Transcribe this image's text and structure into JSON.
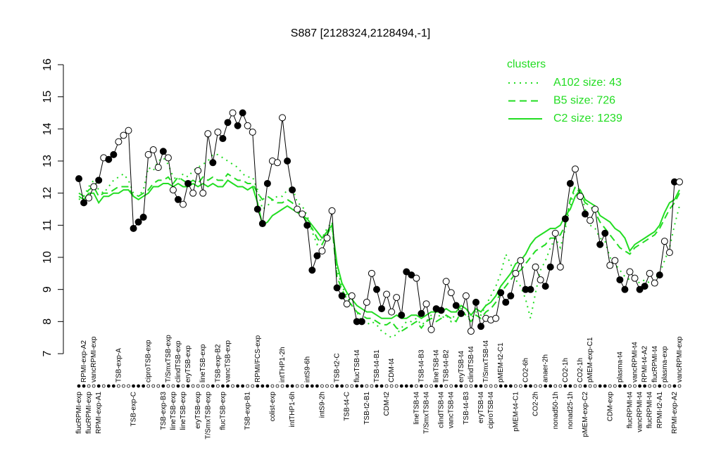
{
  "chart_data": {
    "type": "dot-line",
    "title": "S887 [2128324,2128494,-1]",
    "ylim": [
      7,
      16
    ],
    "yticks": [
      7,
      8,
      9,
      10,
      11,
      12,
      13,
      14,
      15,
      16
    ],
    "categories": [
      "flucRPMI-exp",
      "RPMI-exp-A2",
      "flucRPMI-exp",
      "vancRPMI-exp",
      "RPMI-exp-A1",
      null,
      null,
      null,
      "TSB-exp-A",
      null,
      null,
      "TSB-exp-C",
      null,
      null,
      "ciproTSB-exp",
      null,
      null,
      "TSB-exp-B3",
      "T/SmxTSB-exp",
      "lineTSB-exp",
      "clindTSB-exp",
      "lineTSB-exp",
      "eryTSB-exp",
      null,
      "eryTSB-exp",
      "lineTSB-exp",
      "T/SmxTSB-exp",
      null,
      "TSB-exp-B2",
      "flucTSB-exp",
      "vancTSB-exp",
      null,
      null,
      null,
      "TSB-exp-B1",
      null,
      "RPMI/FCS-exp",
      null,
      null,
      "colist-exp",
      null,
      "intTHP1-2h",
      null,
      "intTHP1-6h",
      null,
      null,
      "intS9-6h",
      null,
      null,
      "intS9-2h",
      null,
      null,
      "TSB-t2-C",
      null,
      "TSB-t4-C",
      null,
      "flucTSB-t4",
      null,
      "TSB-t2-B1",
      null,
      "TSB-t4-B1",
      null,
      "CDM-t2",
      "CDM-t4",
      null,
      null,
      null,
      null,
      "lineTSB-t4",
      "TSB-t4-B3",
      "T/SmxTSB-t4",
      null,
      "lineTSB-t4",
      "clindTSB-t4",
      "TSB-t4-B2",
      "vancTSB-t4",
      null,
      "eryTSB-t4",
      "TSB-t4-B3",
      "clindTSB-t4",
      null,
      "eryTSB-t4",
      "T/SmxTSB-t4",
      "ciproTSB-t4",
      null,
      "pMEM-t2-C1",
      null,
      null,
      "pMEM-t4-C1",
      null,
      "CO2-6h",
      null,
      "CO2-2h",
      null,
      "anaer-2h",
      null,
      "nonad50-1h",
      null,
      "CO2-1h",
      "nonad25-1h",
      null,
      "CO2-1h",
      "pMEM-exp-C2",
      "pMEM-exp-C1",
      null,
      null,
      null,
      "CDM-exp",
      null,
      "plasma-t4",
      null,
      "flucRPMI-t4",
      "vancRPMI-t4",
      "vancRPMI-t4",
      "RPMI-t4-A2",
      "flucRPMI-t4",
      "flucRPMI-t4",
      "RPMI-t2-A1",
      "plasma-exp",
      null,
      "RPMI-exp-A2",
      "vancRPMI-exp"
    ],
    "values": [
      12.45,
      11.7,
      11.85,
      12.2,
      12.4,
      13.1,
      13.05,
      13.2,
      13.6,
      13.8,
      13.95,
      10.9,
      11.1,
      11.25,
      13.2,
      13.35,
      12.8,
      13.3,
      13.1,
      12.1,
      11.8,
      11.65,
      12.3,
      12.0,
      12.7,
      12.0,
      13.85,
      12.95,
      13.9,
      13.7,
      14.2,
      14.5,
      14.1,
      14.5,
      14.1,
      13.9,
      11.5,
      11.05,
      12.3,
      13.0,
      12.95,
      14.35,
      13.0,
      12.1,
      11.5,
      11.35,
      11.0,
      9.6,
      10.05,
      10.2,
      10.6,
      11.45,
      9.05,
      8.8,
      8.55,
      8.8,
      8.0,
      8.0,
      8.6,
      9.5,
      9.0,
      8.4,
      8.85,
      8.3,
      8.75,
      8.2,
      9.55,
      9.45,
      9.35,
      8.25,
      8.55,
      7.75,
      8.4,
      8.35,
      9.25,
      8.9,
      8.5,
      8.25,
      8.8,
      7.7,
      8.6,
      7.85,
      8.1,
      8.05,
      8.1,
      8.9,
      8.6,
      8.8,
      9.5,
      9.9,
      9.0,
      9.0,
      9.7,
      9.3,
      9.1,
      9.7,
      10.75,
      9.7,
      11.2,
      12.3,
      12.75,
      11.9,
      11.35,
      11.15,
      11.5,
      10.4,
      10.75,
      9.75,
      9.9,
      9.3,
      9.0,
      9.55,
      9.35,
      9.0,
      9.1,
      9.5,
      9.2,
      9.45,
      10.5,
      10.15,
      12.35,
      12.35
    ],
    "point_filled": [
      true,
      true,
      false,
      false,
      true,
      false,
      true,
      true,
      false,
      false,
      false,
      true,
      true,
      true,
      false,
      false,
      false,
      true,
      false,
      false,
      true,
      false,
      true,
      false,
      false,
      false,
      false,
      true,
      false,
      true,
      true,
      false,
      true,
      true,
      false,
      false,
      true,
      true,
      true,
      false,
      false,
      false,
      true,
      true,
      false,
      false,
      true,
      true,
      true,
      false,
      false,
      false,
      true,
      true,
      false,
      false,
      true,
      true,
      false,
      false,
      true,
      true,
      false,
      false,
      false,
      true,
      true,
      true,
      false,
      true,
      false,
      false,
      true,
      true,
      false,
      false,
      true,
      true,
      false,
      false,
      true,
      true,
      false,
      false,
      false,
      true,
      true,
      true,
      false,
      false,
      true,
      true,
      false,
      false,
      true,
      true,
      false,
      false,
      true,
      true,
      false,
      false,
      true,
      false,
      false,
      true,
      true,
      false,
      false,
      true,
      true,
      false,
      false,
      true,
      true,
      false,
      false,
      true,
      false,
      false,
      true,
      false
    ],
    "legend_title": "clusters",
    "legend": "top-right",
    "series": [
      {
        "name": "A102 size: 43",
        "color": "#22dd22",
        "style": "dotted",
        "values": [
          11.8,
          11.9,
          12.2,
          12.4,
          12.1,
          12.0,
          12.2,
          12.4,
          12.5,
          12.6,
          12.4,
          12.0,
          11.9,
          12.1,
          12.8,
          12.7,
          13.0,
          13.1,
          12.9,
          12.5,
          12.4,
          12.6,
          12.5,
          12.7,
          12.8,
          12.9,
          13.0,
          13.2,
          13.2,
          13.1,
          13.0,
          12.9,
          12.8,
          12.6,
          12.5,
          12.5,
          12.1,
          11.5,
          11.6,
          11.8,
          11.9,
          11.9,
          12.1,
          12.2,
          11.7,
          11.6,
          11.3,
          10.8,
          10.4,
          10.6,
          10.9,
          11.1,
          9.6,
          9.1,
          8.8,
          8.5,
          8.3,
          8.0,
          7.9,
          8.0,
          7.9,
          7.7,
          7.6,
          7.5,
          7.6,
          7.8,
          8.0,
          8.0,
          8.1,
          7.9,
          8.0,
          8.2,
          8.3,
          8.1,
          8.2,
          8.0,
          8.3,
          8.4,
          8.2,
          8.1,
          8.3,
          8.2,
          8.5,
          8.8,
          9.1,
          9.5,
          10.1,
          9.8,
          9.3,
          9.1,
          8.7,
          8.1,
          8.9,
          9.6,
          9.9,
          10.3,
          10.6,
          10.3,
          10.9,
          11.6,
          12.2,
          12.1,
          11.5,
          11.0,
          10.9,
          10.6,
          10.5,
          10.0,
          9.8,
          9.6,
          9.4,
          9.3,
          9.3,
          9.2,
          9.3,
          9.2,
          9.3,
          9.5,
          9.9,
          10.3,
          11.0,
          11.6
        ]
      },
      {
        "name": "B5 size: 726",
        "color": "#22dd22",
        "style": "dashed",
        "values": [
          12.0,
          11.9,
          12.1,
          12.2,
          11.9,
          12.0,
          12.0,
          12.1,
          12.2,
          12.2,
          12.2,
          11.9,
          11.9,
          12.0,
          12.1,
          12.3,
          12.4,
          12.4,
          12.5,
          12.3,
          12.5,
          12.4,
          12.3,
          12.4,
          12.3,
          12.5,
          12.4,
          12.5,
          12.4,
          12.4,
          12.6,
          12.5,
          12.4,
          12.4,
          12.3,
          12.3,
          12.0,
          11.8,
          11.9,
          11.8,
          11.7,
          11.7,
          11.8,
          11.7,
          11.5,
          11.3,
          11.1,
          10.9,
          10.6,
          10.4,
          10.7,
          11.0,
          9.4,
          9.0,
          8.7,
          8.5,
          8.3,
          8.2,
          8.1,
          8.1,
          8.0,
          7.9,
          7.9,
          8.0,
          7.8,
          7.7,
          7.8,
          7.9,
          8.0,
          7.8,
          8.0,
          8.1,
          8.0,
          8.1,
          8.2,
          8.1,
          8.0,
          8.3,
          8.2,
          8.0,
          8.2,
          8.1,
          8.3,
          8.4,
          8.6,
          8.9,
          9.1,
          9.3,
          9.5,
          9.6,
          9.8,
          10.0,
          10.2,
          10.3,
          10.4,
          10.6,
          10.6,
          10.7,
          11.0,
          11.8,
          12.2,
          12.0,
          11.7,
          11.6,
          11.4,
          11.1,
          10.9,
          10.7,
          10.5,
          10.3,
          10.2,
          10.1,
          10.3,
          10.4,
          10.5,
          10.6,
          10.7,
          10.9,
          11.2,
          11.5,
          11.7,
          12.0
        ]
      },
      {
        "name": "C2 size: 1239",
        "color": "#22dd22",
        "style": "solid",
        "values": [
          11.9,
          11.8,
          12.0,
          12.0,
          11.7,
          11.9,
          11.9,
          12.0,
          12.0,
          12.1,
          12.1,
          11.9,
          11.8,
          11.9,
          12.0,
          12.2,
          12.2,
          12.3,
          12.3,
          12.2,
          12.3,
          12.2,
          12.2,
          12.3,
          12.2,
          12.3,
          12.2,
          12.3,
          12.2,
          12.2,
          12.4,
          12.3,
          12.2,
          12.2,
          12.1,
          12.2,
          11.7,
          11.0,
          11.1,
          11.3,
          11.4,
          11.5,
          11.6,
          11.5,
          11.4,
          11.3,
          11.2,
          11.0,
          10.8,
          10.6,
          10.8,
          11.0,
          9.8,
          9.2,
          8.9,
          8.7,
          8.5,
          8.4,
          8.3,
          8.3,
          8.2,
          8.1,
          8.1,
          8.1,
          8.2,
          8.1,
          8.1,
          8.2,
          8.2,
          8.1,
          8.2,
          8.3,
          8.3,
          8.3,
          8.4,
          8.3,
          8.3,
          8.5,
          8.4,
          8.2,
          8.4,
          8.3,
          8.5,
          8.6,
          8.8,
          9.1,
          9.3,
          9.5,
          9.8,
          9.9,
          10.1,
          10.4,
          10.6,
          10.7,
          10.8,
          10.9,
          10.9,
          11.0,
          11.3,
          11.5,
          11.9,
          12.1,
          11.8,
          11.7,
          11.6,
          11.3,
          11.2,
          11.1,
          10.9,
          10.8,
          10.6,
          10.2,
          10.4,
          10.5,
          10.6,
          10.7,
          10.8,
          11.0,
          11.4,
          11.7,
          11.8,
          12.1
        ]
      }
    ]
  }
}
